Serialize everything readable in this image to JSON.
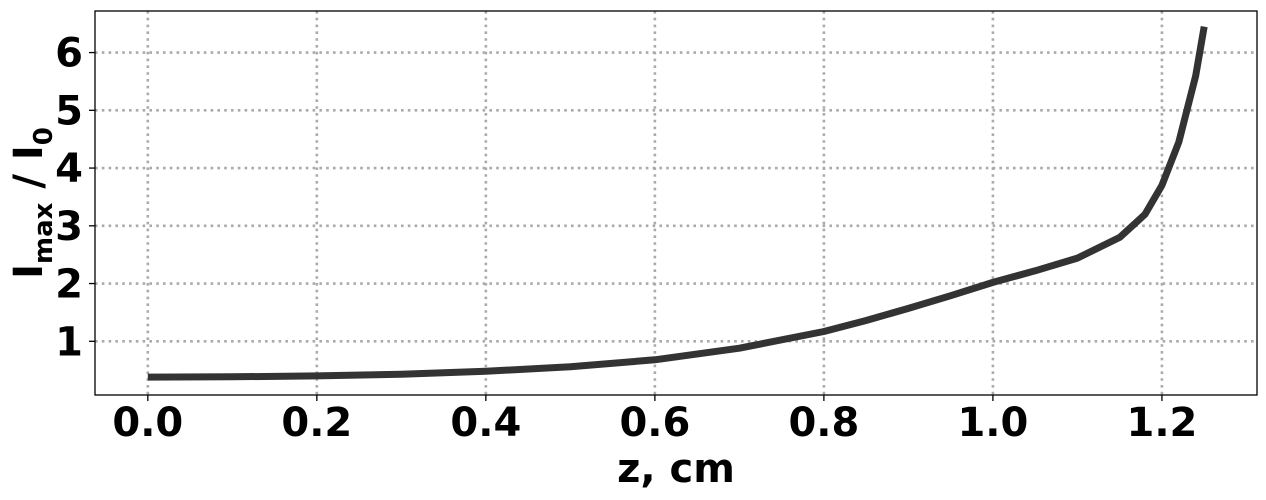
{
  "chart_data": {
    "type": "line",
    "title": "",
    "xlabel": "z, cm",
    "ylabel": {
      "main": "I",
      "main_sub": "max",
      "separator": " / ",
      "denom": "I",
      "denom_sub": "0"
    },
    "xlim": [
      -0.0625,
      1.3125
    ],
    "ylim": [
      0.07,
      6.72
    ],
    "xticks": [
      0.0,
      0.2,
      0.4,
      0.6,
      0.8,
      1.0,
      1.2
    ],
    "xtick_labels": [
      "0.0",
      "0.2",
      "0.4",
      "0.6",
      "0.8",
      "1.0",
      "1.2"
    ],
    "yticks": [
      1,
      2,
      3,
      4,
      5,
      6
    ],
    "ytick_labels": [
      "1",
      "2",
      "3",
      "4",
      "5",
      "6"
    ],
    "grid": true,
    "legend": "none",
    "line_color": "#333333",
    "grid_color": "#aaaaaa",
    "series": [
      {
        "x": [
          0.0,
          0.1,
          0.2,
          0.3,
          0.4,
          0.5,
          0.6,
          0.7,
          0.8,
          0.85,
          0.9,
          0.95,
          1.0,
          1.05,
          1.1,
          1.15,
          1.18,
          1.2,
          1.22,
          1.24,
          1.25
        ],
        "y": [
          0.38,
          0.385,
          0.4,
          0.43,
          0.48,
          0.56,
          0.68,
          0.88,
          1.17,
          1.36,
          1.57,
          1.79,
          2.02,
          2.22,
          2.44,
          2.8,
          3.2,
          3.7,
          4.45,
          5.6,
          6.45
        ]
      }
    ]
  }
}
